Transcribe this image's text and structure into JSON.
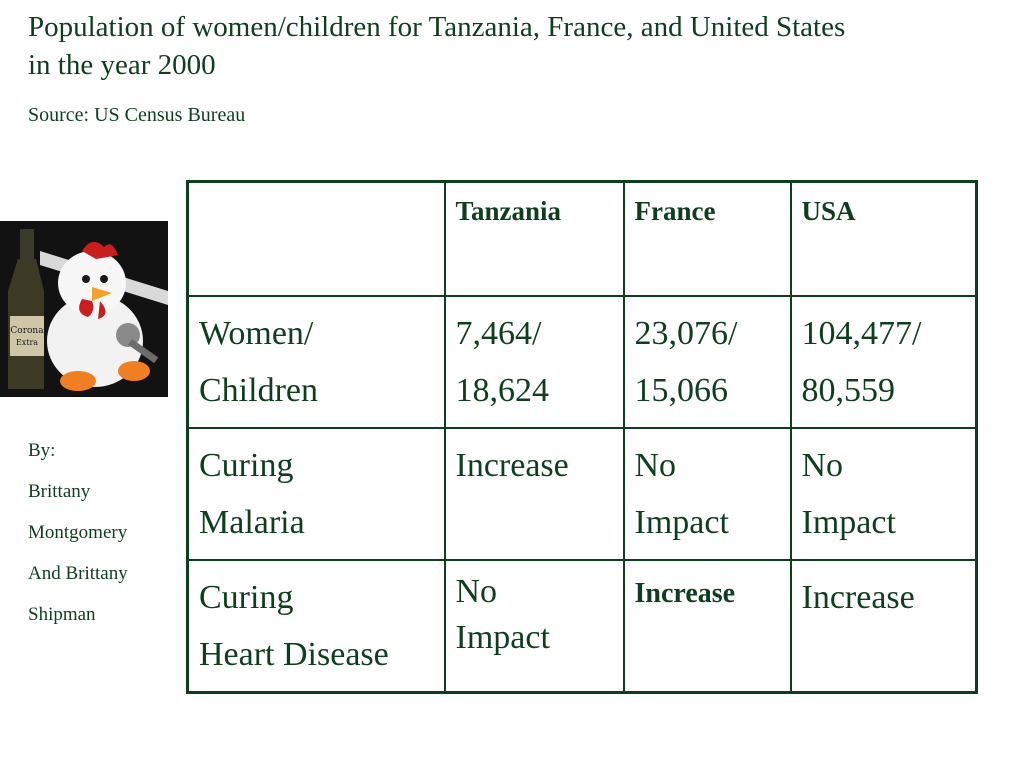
{
  "slide": {
    "title_line1": "Population of women/children for Tanzania, France, and United States",
    "title_line2": "in the year 2000",
    "source": "Source: US Census Bureau"
  },
  "byline": [
    "By:",
    "Brittany",
    "Montgomery",
    "And Brittany",
    "Shipman"
  ],
  "photo": {
    "bottle_label": "Corona",
    "bottle_label_2": "Extra"
  },
  "table": {
    "headers": [
      "",
      "Tanzania",
      "France",
      "USA"
    ],
    "rows": [
      {
        "label": [
          "Women/",
          "Children"
        ],
        "cells": [
          [
            "7,464/",
            "18,624"
          ],
          [
            "23,076/",
            "15,066"
          ],
          [
            "104,477/",
            "80,559"
          ]
        ]
      },
      {
        "label": [
          "Curing",
          "Malaria"
        ],
        "cells": [
          [
            "Increase"
          ],
          [
            "No",
            "Impact"
          ],
          [
            "No",
            "Impact"
          ]
        ]
      },
      {
        "label": [
          "Curing",
          "Heart Disease"
        ],
        "cells": [
          [
            "No",
            "Impact"
          ],
          [
            "Increase"
          ],
          [
            "Increase"
          ]
        ]
      }
    ]
  },
  "colors": {
    "text": "#0f3d1f",
    "background": "#ffffff",
    "table_border": "#0f3d1f"
  }
}
